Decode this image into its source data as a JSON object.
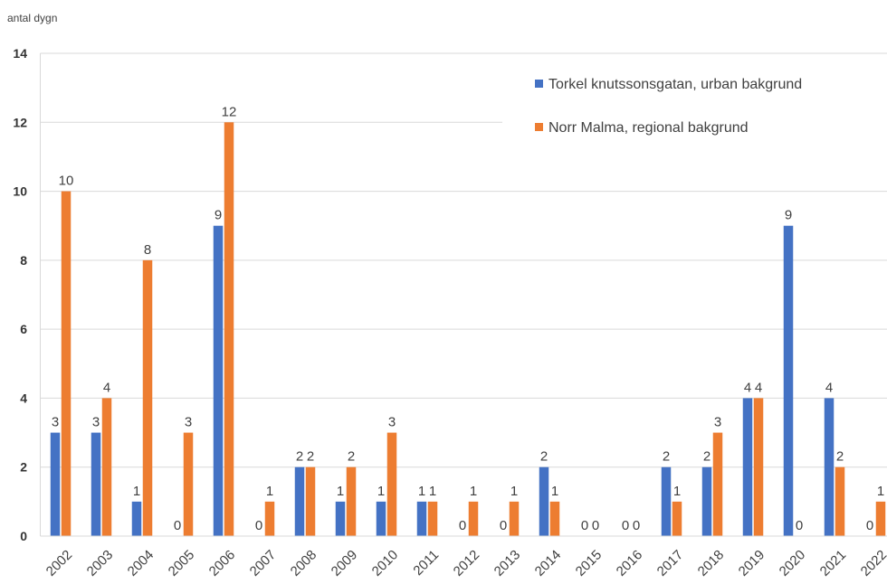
{
  "chart_data": {
    "type": "bar",
    "y_axis_label": "antal dygn",
    "categories": [
      "2002",
      "2003",
      "2004",
      "2005",
      "2006",
      "2007",
      "2008",
      "2009",
      "2010",
      "2011",
      "2012",
      "2013",
      "2014",
      "2015",
      "2016",
      "2017",
      "2018",
      "2019",
      "2020",
      "2021",
      "2022"
    ],
    "series": [
      {
        "name": "Torkel knutssonsgatan, urban bakgrund",
        "color": "#4472c4",
        "values": [
          3,
          3,
          1,
          0,
          9,
          0,
          2,
          1,
          1,
          1,
          0,
          0,
          2,
          0,
          0,
          2,
          2,
          4,
          9,
          4,
          0
        ]
      },
      {
        "name": "Norr Malma, regional bakgrund",
        "color": "#ed7d31",
        "values": [
          10,
          4,
          8,
          3,
          12,
          1,
          2,
          2,
          3,
          1,
          1,
          1,
          1,
          0,
          0,
          1,
          3,
          4,
          0,
          2,
          1
        ]
      }
    ],
    "ylim": [
      0,
      14
    ],
    "yticks": [
      0,
      2,
      4,
      6,
      8,
      10,
      12,
      14
    ],
    "grid": true,
    "legend": "top-right",
    "data_labels": true
  }
}
